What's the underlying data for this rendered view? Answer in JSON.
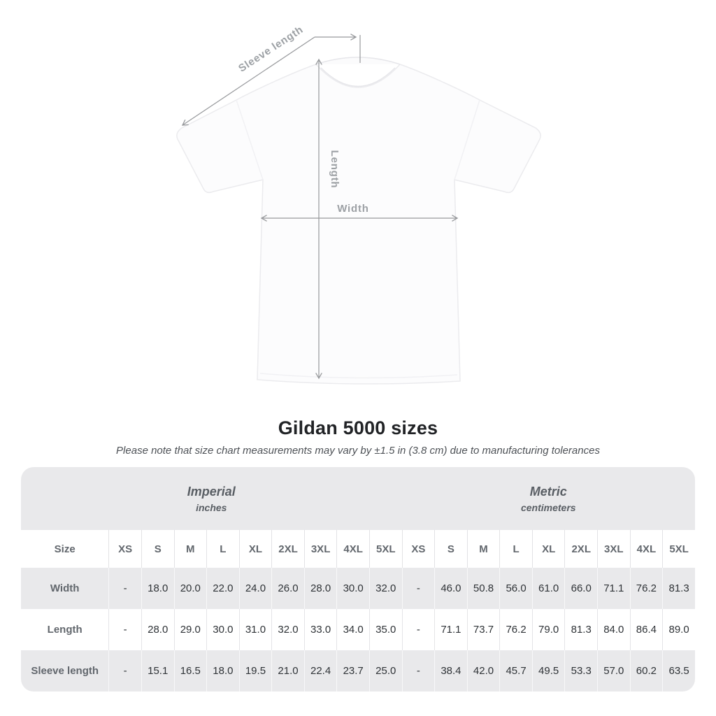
{
  "title": "Gildan 5000 sizes",
  "subtitle": "Please note that size chart measurements may vary by ±1.5 in (3.8 cm) due to manufacturing tolerances",
  "diagram": {
    "sleeve_length_label": "Sleeve length",
    "length_label": "Length",
    "width_label": "Width"
  },
  "table": {
    "unit_groups": [
      {
        "label": "Imperial",
        "sublabel": "inches"
      },
      {
        "label": "Metric",
        "sublabel": "centimeters"
      }
    ],
    "size_header": "Size",
    "sizes": [
      "XS",
      "S",
      "M",
      "L",
      "XL",
      "2XL",
      "3XL",
      "4XL",
      "5XL"
    ],
    "rows": [
      {
        "label": "Width",
        "imperial": [
          "-",
          "18.0",
          "20.0",
          "22.0",
          "24.0",
          "26.0",
          "28.0",
          "30.0",
          "32.0"
        ],
        "metric": [
          "-",
          "46.0",
          "50.8",
          "56.0",
          "61.0",
          "66.0",
          "71.1",
          "76.2",
          "81.3"
        ]
      },
      {
        "label": "Length",
        "imperial": [
          "-",
          "28.0",
          "29.0",
          "30.0",
          "31.0",
          "32.0",
          "33.0",
          "34.0",
          "35.0"
        ],
        "metric": [
          "-",
          "71.1",
          "73.7",
          "76.2",
          "79.0",
          "81.3",
          "84.0",
          "86.4",
          "89.0"
        ]
      },
      {
        "label": "Sleeve length",
        "imperial": [
          "-",
          "15.1",
          "16.5",
          "18.0",
          "19.5",
          "21.0",
          "22.4",
          "23.7",
          "25.0"
        ],
        "metric": [
          "-",
          "38.4",
          "42.0",
          "45.7",
          "49.5",
          "53.3",
          "57.0",
          "60.2",
          "63.5"
        ]
      }
    ]
  },
  "chart_data": {
    "type": "table",
    "title": "Gildan 5000 sizes",
    "note": "Measurements may vary by ±1.5 in (3.8 cm) due to manufacturing tolerances",
    "column_groups": [
      "Imperial (inches)",
      "Metric (centimeters)"
    ],
    "columns": [
      "XS",
      "S",
      "M",
      "L",
      "XL",
      "2XL",
      "3XL",
      "4XL",
      "5XL"
    ],
    "rows": [
      {
        "label": "Width",
        "imperial": [
          null,
          18.0,
          20.0,
          22.0,
          24.0,
          26.0,
          28.0,
          30.0,
          32.0
        ],
        "metric": [
          null,
          46.0,
          50.8,
          56.0,
          61.0,
          66.0,
          71.1,
          76.2,
          81.3
        ]
      },
      {
        "label": "Length",
        "imperial": [
          null,
          28.0,
          29.0,
          30.0,
          31.0,
          32.0,
          33.0,
          34.0,
          35.0
        ],
        "metric": [
          null,
          71.1,
          73.7,
          76.2,
          79.0,
          81.3,
          84.0,
          86.4,
          89.0
        ]
      },
      {
        "label": "Sleeve length",
        "imperial": [
          null,
          15.1,
          16.5,
          18.0,
          19.5,
          21.0,
          22.4,
          23.7,
          25.0
        ],
        "metric": [
          null,
          38.4,
          42.0,
          45.7,
          49.5,
          53.3,
          57.0,
          60.2,
          63.5
        ]
      }
    ]
  },
  "colors": {
    "band_gray": "#e9e9eb",
    "row_gray": "#e9e9eb",
    "header_text": "#62676d",
    "cell_text": "#2f3337",
    "annotation_gray": "#9da1a5",
    "line_gray": "#97999c"
  }
}
